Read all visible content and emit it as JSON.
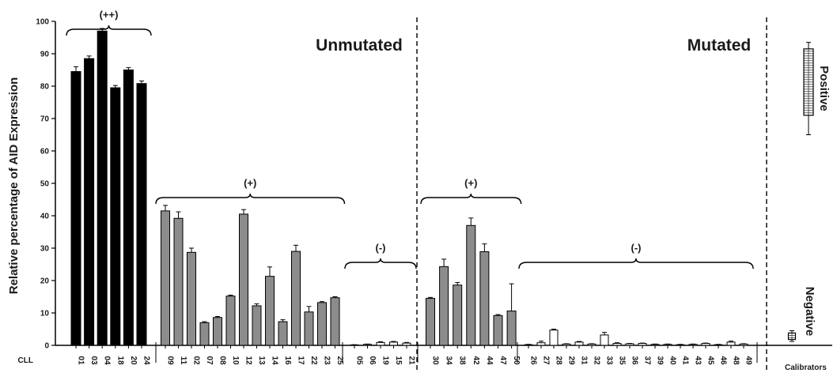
{
  "chart_data": {
    "type": "bar",
    "ylabel": "Relative percentage of AID Expression",
    "ylim": [
      0,
      100
    ],
    "yticks": [
      0,
      10,
      20,
      30,
      40,
      50,
      60,
      70,
      80,
      90,
      100
    ],
    "x_axis_prefix": "CLL",
    "group_titles": {
      "unmutated": "Unmutated",
      "mutated": "Mutated"
    },
    "groups": [
      {
        "label": "(++)",
        "fill": "#000000",
        "categories": [
          "01",
          "03",
          "04",
          "18",
          "20",
          "24"
        ],
        "values": [
          84.5,
          88.5,
          97.0,
          79.5,
          85.0,
          80.8
        ],
        "errors": [
          1.5,
          0.8,
          0.8,
          0.7,
          0.7,
          0.8
        ]
      },
      {
        "label": "(+)",
        "fill": "#8c8c8c",
        "categories": [
          "09",
          "11",
          "02",
          "07",
          "08",
          "10",
          "12",
          "13",
          "14",
          "16",
          "17",
          "22",
          "23",
          "25"
        ],
        "values": [
          41.5,
          39.2,
          28.7,
          7.0,
          8.6,
          15.2,
          40.5,
          12.2,
          21.3,
          7.3,
          29.0,
          10.3,
          13.2,
          14.7
        ],
        "errors": [
          1.7,
          2.0,
          1.3,
          0.3,
          0.3,
          0.3,
          1.4,
          0.6,
          2.9,
          0.6,
          1.9,
          1.7,
          0.3,
          0.3
        ]
      },
      {
        "label": "(-)",
        "fill": "#ffffff",
        "categories": [
          "05",
          "06",
          "19",
          "15",
          "21"
        ],
        "values": [
          0.1,
          0.3,
          0.9,
          1.0,
          0.7
        ],
        "errors": [
          0.1,
          0.1,
          0.2,
          0.2,
          0.2
        ]
      },
      {
        "label": "(+)",
        "fill": "#8c8c8c",
        "categories": [
          "30",
          "34",
          "38",
          "42",
          "44",
          "47",
          "50"
        ],
        "values": [
          14.5,
          24.3,
          18.6,
          37.0,
          28.9,
          9.2,
          10.6
        ],
        "errors": [
          0.3,
          2.3,
          0.8,
          2.3,
          2.4,
          0.3,
          8.4
        ]
      },
      {
        "label": "(-)",
        "fill": "#ffffff",
        "categories": [
          "26",
          "27",
          "28",
          "29",
          "31",
          "32",
          "33",
          "35",
          "36",
          "37",
          "39",
          "40",
          "41",
          "43",
          "45",
          "46",
          "48",
          "49"
        ],
        "values": [
          0.2,
          0.8,
          4.7,
          0.4,
          1.0,
          0.4,
          3.2,
          0.6,
          0.5,
          0.6,
          0.3,
          0.3,
          0.2,
          0.3,
          0.6,
          0.2,
          1.0,
          0.4
        ],
        "errors": [
          0.1,
          0.5,
          0.3,
          0.1,
          0.2,
          0.1,
          0.8,
          0.2,
          0.1,
          0.1,
          0.1,
          0.1,
          0.1,
          0.1,
          0.1,
          0.1,
          0.3,
          0.1
        ]
      }
    ],
    "calibrators": {
      "label": "Calibrators",
      "positive": {
        "label": "Positive",
        "min": 65,
        "q1": 71,
        "q3": 91.5,
        "max": 93.5
      },
      "negative": {
        "label": "Negative",
        "min": 1.2,
        "q1": 1.8,
        "q3": 3.8,
        "max": 4.5
      }
    }
  }
}
